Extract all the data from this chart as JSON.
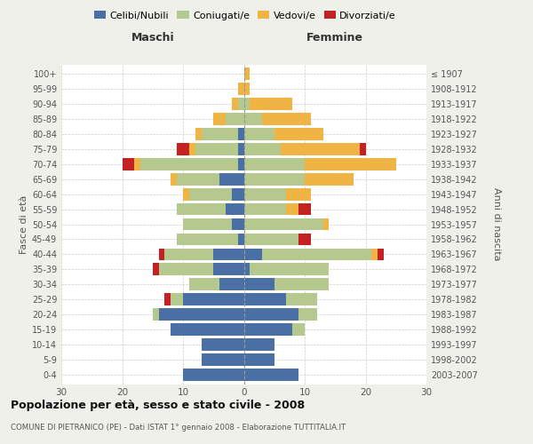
{
  "age_groups": [
    "0-4",
    "5-9",
    "10-14",
    "15-19",
    "20-24",
    "25-29",
    "30-34",
    "35-39",
    "40-44",
    "45-49",
    "50-54",
    "55-59",
    "60-64",
    "65-69",
    "70-74",
    "75-79",
    "80-84",
    "85-89",
    "90-94",
    "95-99",
    "100+"
  ],
  "birth_years": [
    "2003-2007",
    "1998-2002",
    "1993-1997",
    "1988-1992",
    "1983-1987",
    "1978-1982",
    "1973-1977",
    "1968-1972",
    "1963-1967",
    "1958-1962",
    "1953-1957",
    "1948-1952",
    "1943-1947",
    "1938-1942",
    "1933-1937",
    "1928-1932",
    "1923-1927",
    "1918-1922",
    "1913-1917",
    "1908-1912",
    "≤ 1907"
  ],
  "colors": {
    "celibe": "#4a6fa5",
    "coniugato": "#b5c98e",
    "vedovo": "#f0b444",
    "divorziato": "#c42222"
  },
  "male": {
    "celibe": [
      10,
      7,
      7,
      12,
      14,
      10,
      4,
      5,
      5,
      1,
      2,
      3,
      2,
      4,
      1,
      1,
      1,
      0,
      0,
      0,
      0
    ],
    "coniugato": [
      0,
      0,
      0,
      0,
      1,
      2,
      5,
      9,
      8,
      10,
      8,
      8,
      7,
      7,
      16,
      7,
      6,
      3,
      1,
      0,
      0
    ],
    "vedovo": [
      0,
      0,
      0,
      0,
      0,
      0,
      0,
      0,
      0,
      0,
      0,
      0,
      1,
      1,
      1,
      1,
      1,
      2,
      1,
      1,
      0
    ],
    "divorziato": [
      0,
      0,
      0,
      0,
      0,
      1,
      0,
      1,
      1,
      0,
      0,
      0,
      0,
      0,
      2,
      2,
      0,
      0,
      0,
      0,
      0
    ]
  },
  "female": {
    "nubile": [
      9,
      5,
      5,
      8,
      9,
      7,
      5,
      1,
      3,
      0,
      0,
      0,
      0,
      0,
      0,
      0,
      0,
      0,
      0,
      0,
      0
    ],
    "coniugata": [
      0,
      0,
      0,
      2,
      3,
      5,
      9,
      13,
      18,
      9,
      13,
      7,
      7,
      10,
      10,
      6,
      5,
      3,
      1,
      0,
      0
    ],
    "vedova": [
      0,
      0,
      0,
      0,
      0,
      0,
      0,
      0,
      1,
      0,
      1,
      2,
      4,
      8,
      15,
      13,
      8,
      8,
      7,
      1,
      1
    ],
    "divorziata": [
      0,
      0,
      0,
      0,
      0,
      0,
      0,
      0,
      1,
      2,
      0,
      2,
      0,
      0,
      0,
      1,
      0,
      0,
      0,
      0,
      0
    ]
  },
  "xlim": 30,
  "title": "Popolazione per età, sesso e stato civile - 2008",
  "subtitle": "COMUNE DI PIETRANICO (PE) - Dati ISTAT 1° gennaio 2008 - Elaborazione TUTTITALIA.IT",
  "ylabel": "Fasce di età",
  "ylabel_right": "Anni di nascita",
  "xlabel_left": "Maschi",
  "xlabel_right": "Femmine",
  "bg_color": "#f0f0eb",
  "plot_bg": "#ffffff",
  "legend_labels": [
    "Celibi/Nubili",
    "Coniugati/e",
    "Vedovi/e",
    "Divorziati/e"
  ]
}
